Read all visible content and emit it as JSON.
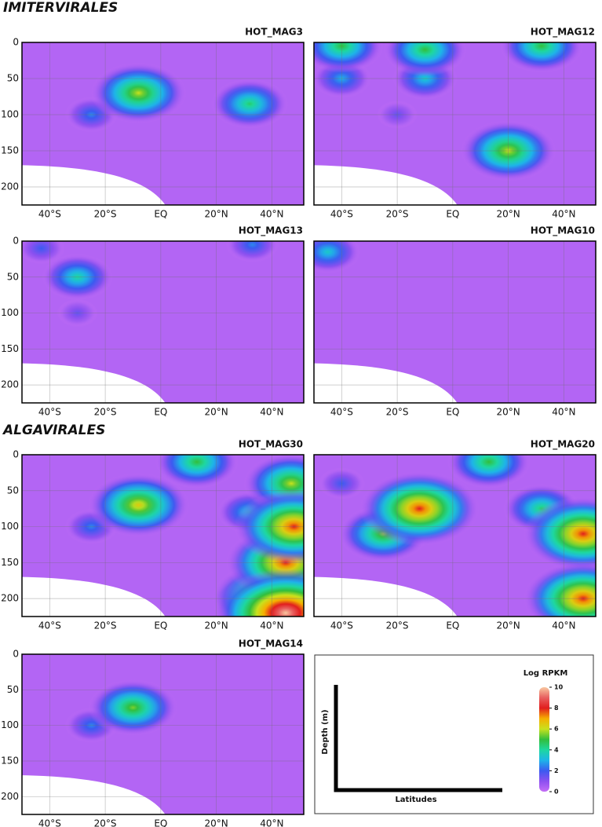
{
  "chart_data": {
    "type": "heatmap",
    "xlim": [
      -50,
      51.5
    ],
    "ylim": [
      0,
      225
    ],
    "y_inverted": true,
    "xticks": [
      {
        "value": -40,
        "label": "40°S"
      },
      {
        "value": -20,
        "label": "20°S"
      },
      {
        "value": 0,
        "label": "EQ"
      },
      {
        "value": 20,
        "label": "20°N"
      },
      {
        "value": 40,
        "label": "40°N"
      }
    ],
    "yticks": [
      0,
      50,
      100,
      150,
      200
    ],
    "grid": true,
    "sections": [
      {
        "title": "IMITERVIRALES",
        "panels": [
          {
            "title": "HOT_MAG3",
            "peaks": [
              {
                "lat": -25,
                "depth": 100,
                "value": 2.5
              },
              {
                "lat": -8,
                "depth": 70,
                "value": 6
              },
              {
                "lat": 32,
                "depth": 85,
                "value": 4.5
              }
            ]
          },
          {
            "title": "HOT_MAG12",
            "peaks": [
              {
                "lat": -20,
                "depth": 100,
                "value": 1.5
              },
              {
                "lat": -40,
                "depth": 50,
                "value": 3
              },
              {
                "lat": -10,
                "depth": 50,
                "value": 3.5
              },
              {
                "lat": -40,
                "depth": 5,
                "value": 5
              },
              {
                "lat": -10,
                "depth": 10,
                "value": 5
              },
              {
                "lat": 32,
                "depth": 5,
                "value": 5
              },
              {
                "lat": 20,
                "depth": 150,
                "value": 6
              }
            ]
          },
          {
            "title": "HOT_MAG13",
            "peaks": [
              {
                "lat": -30,
                "depth": 100,
                "value": 1.5
              },
              {
                "lat": -43,
                "depth": 10,
                "value": 2
              },
              {
                "lat": -30,
                "depth": 50,
                "value": 4
              },
              {
                "lat": 33,
                "depth": 5,
                "value": 2.5
              }
            ]
          },
          {
            "title": "HOT_MAG10",
            "peaks": [
              {
                "lat": -45,
                "depth": 15,
                "value": 3.5
              }
            ]
          }
        ]
      },
      {
        "title": "ALGAVIRALES",
        "panels": [
          {
            "title": "HOT_MAG30",
            "peaks": [
              {
                "lat": -25,
                "depth": 100,
                "value": 2.5
              },
              {
                "lat": 32,
                "depth": 80,
                "value": 3.5
              },
              {
                "lat": 32,
                "depth": 200,
                "value": 4
              },
              {
                "lat": 13,
                "depth": 10,
                "value": 5
              },
              {
                "lat": -8,
                "depth": 70,
                "value": 6.5
              },
              {
                "lat": 47,
                "depth": 40,
                "value": 6
              },
              {
                "lat": 40,
                "depth": 200,
                "value": 8
              },
              {
                "lat": 45,
                "depth": 150,
                "value": 8
              },
              {
                "lat": 48,
                "depth": 100,
                "value": 8
              },
              {
                "lat": 45,
                "depth": 220,
                "value": 10
              }
            ]
          },
          {
            "title": "HOT_MAG20",
            "peaks": [
              {
                "lat": -40,
                "depth": 40,
                "value": 2
              },
              {
                "lat": -25,
                "depth": 110,
                "value": 5.5
              },
              {
                "lat": 13,
                "depth": 10,
                "value": 5
              },
              {
                "lat": 32,
                "depth": 75,
                "value": 4.5
              },
              {
                "lat": -12,
                "depth": 75,
                "value": 8
              },
              {
                "lat": 47,
                "depth": 110,
                "value": 8
              },
              {
                "lat": 47,
                "depth": 200,
                "value": 8
              }
            ]
          },
          {
            "title": "HOT_MAG14",
            "peaks": [
              {
                "lat": -25,
                "depth": 100,
                "value": 2.5
              },
              {
                "lat": -10,
                "depth": 75,
                "value": 5.5
              }
            ]
          }
        ]
      }
    ],
    "colorbar": {
      "title": "Log RPKM",
      "lim": [
        0,
        10
      ],
      "ticks": [
        0,
        2,
        4,
        6,
        8,
        10
      ]
    },
    "legend": {
      "y_label": "Depth (m)",
      "x_label": "Latitudes"
    }
  }
}
